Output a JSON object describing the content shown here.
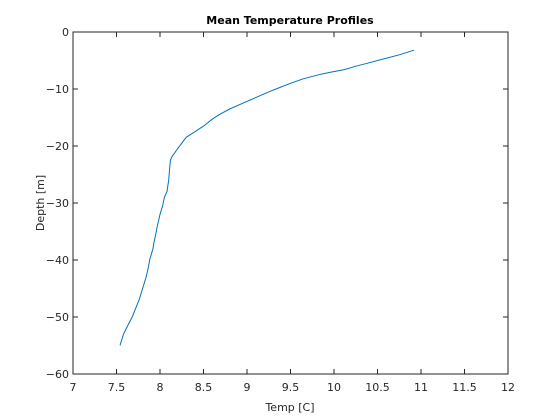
{
  "chart_data": {
    "type": "line",
    "title": "Mean Temperature Profiles",
    "xlabel": "Temp [C]",
    "ylabel": "Depth [m]",
    "xlim": [
      7,
      12
    ],
    "ylim": [
      -60,
      0
    ],
    "xticks": [
      7,
      7.5,
      8,
      8.5,
      9,
      9.5,
      10,
      10.5,
      11,
      11.5,
      12
    ],
    "xtick_labels": [
      "7",
      "7.5",
      "8",
      "8.5",
      "9",
      "9.5",
      "10",
      "10.5",
      "11",
      "11.5",
      "12"
    ],
    "yticks": [
      0,
      -10,
      -20,
      -30,
      -40,
      -50,
      -60
    ],
    "ytick_labels": [
      "0",
      "−10",
      "−20",
      "−30",
      "−40",
      "−50",
      "−60"
    ],
    "grid": false,
    "line_color": "#0072bd",
    "series": [
      {
        "x": [
          10.92,
          10.75,
          10.55,
          10.38,
          10.25,
          10.12,
          9.98,
          9.85,
          9.65,
          9.5,
          9.3,
          9.1,
          8.95,
          8.8,
          8.68,
          8.6,
          8.5,
          8.4,
          8.35,
          8.3,
          8.25,
          8.2,
          8.17,
          8.14,
          8.12,
          8.11,
          8.1,
          8.09,
          8.08,
          8.05,
          8.03,
          8.0,
          7.97,
          7.95,
          7.93,
          7.92,
          7.9,
          7.88,
          7.87,
          7.84,
          7.8,
          7.76,
          7.72,
          7.68,
          7.63,
          7.58,
          7.54
        ],
        "y": [
          -3.2,
          -4.0,
          -4.8,
          -5.5,
          -6.0,
          -6.6,
          -7.0,
          -7.4,
          -8.2,
          -9.0,
          -10.2,
          -11.5,
          -12.5,
          -13.5,
          -14.5,
          -15.3,
          -16.5,
          -17.5,
          -18.0,
          -18.5,
          -19.5,
          -20.5,
          -21.2,
          -21.8,
          -22.5,
          -24.0,
          -26.0,
          -27.0,
          -28.0,
          -29.0,
          -30.5,
          -32.0,
          -34.0,
          -35.5,
          -37.0,
          -38.0,
          -39.0,
          -40.0,
          -41.0,
          -43.0,
          -45.0,
          -47.0,
          -48.5,
          -50.0,
          -51.5,
          -53.0,
          -55.0
        ]
      }
    ]
  }
}
